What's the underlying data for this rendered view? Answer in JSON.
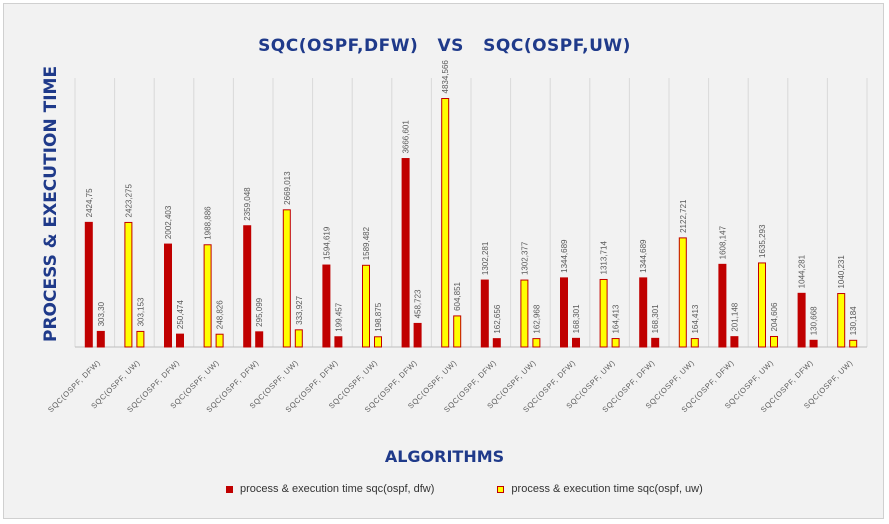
{
  "chart_data": {
    "type": "bar",
    "title": "SQC(OSPF,DFW)   VS   SQC(OSPF,UW)",
    "xlabel": "ALGORITHMS",
    "ylabel": "PROCESS & EXECUTION TIME",
    "categories": [
      "SQC(OSPF, DFW)",
      "SQC(OSPF, UW)",
      "SQC(OSPF, DFW)",
      "SQC(OSPF, UW)",
      "SQC(OSPF, DFW)",
      "SQC(OSPF, UW)",
      "SQC(OSPF, DFW)",
      "SQC(OSPF, UW)",
      "SQC(OSPF, DFW)",
      "SQC(OSPF, UW)",
      "SQC(OSPF, DFW)",
      "SQC(OSPF, UW)",
      "SQC(OSPF, DFW)",
      "SQC(OSPF, UW)",
      "SQC(OSPF, DFW)",
      "SQC(OSPF, UW)",
      "SQC(OSPF, DFW)",
      "SQC(OSPF, UW)",
      "SQC(OSPF, DFW)",
      "SQC(OSPF, UW)"
    ],
    "series": [
      {
        "name": "process & execution time sqc(ospf, dfw)",
        "color": "#c00000",
        "stroke": "#c00000"
      },
      {
        "name": "process & execution time sqc(ospf, uw)",
        "color": "#ffff00",
        "stroke": "#c00000"
      }
    ],
    "bars": [
      {
        "series": 0,
        "value": 2424.75,
        "label": "2424,75"
      },
      {
        "series": 0,
        "value": 303.3,
        "label": "303,30"
      },
      {
        "series": 1,
        "value": 2423.275,
        "label": "2423,275"
      },
      {
        "series": 1,
        "value": 303.153,
        "label": "303,153"
      },
      {
        "series": 0,
        "value": 2002.403,
        "label": "2002,403"
      },
      {
        "series": 0,
        "value": 250.474,
        "label": "250,474"
      },
      {
        "series": 1,
        "value": 1988.886,
        "label": "1988,886"
      },
      {
        "series": 1,
        "value": 248.826,
        "label": "248,826"
      },
      {
        "series": 0,
        "value": 2359.048,
        "label": "2359,048"
      },
      {
        "series": 0,
        "value": 295.099,
        "label": "295,099"
      },
      {
        "series": 1,
        "value": 2669.013,
        "label": "2669,013"
      },
      {
        "series": 1,
        "value": 333.927,
        "label": "333,927"
      },
      {
        "series": 0,
        "value": 1594.619,
        "label": "1594,619"
      },
      {
        "series": 0,
        "value": 199.457,
        "label": "199,457"
      },
      {
        "series": 1,
        "value": 1589.482,
        "label": "1589,482"
      },
      {
        "series": 1,
        "value": 198.875,
        "label": "198,875"
      },
      {
        "series": 0,
        "value": 3666.601,
        "label": "3666,601"
      },
      {
        "series": 0,
        "value": 458.723,
        "label": "458,723"
      },
      {
        "series": 1,
        "value": 4834.566,
        "label": "4834,566"
      },
      {
        "series": 1,
        "value": 604.851,
        "label": "604,851"
      },
      {
        "series": 0,
        "value": 1302.281,
        "label": "1302,281"
      },
      {
        "series": 0,
        "value": 162.656,
        "label": "162,656"
      },
      {
        "series": 1,
        "value": 1302.377,
        "label": "1302,377"
      },
      {
        "series": 1,
        "value": 162.968,
        "label": "162,968"
      },
      {
        "series": 0,
        "value": 1344.689,
        "label": "1344,689"
      },
      {
        "series": 0,
        "value": 168.301,
        "label": "168,301"
      },
      {
        "series": 1,
        "value": 1313.714,
        "label": "1313,714"
      },
      {
        "series": 1,
        "value": 164.413,
        "label": "164,413"
      },
      {
        "series": 0,
        "value": 1344.689,
        "label": "1344,689"
      },
      {
        "series": 0,
        "value": 168.301,
        "label": "168,301"
      },
      {
        "series": 1,
        "value": 2122.721,
        "label": "2122,721"
      },
      {
        "series": 1,
        "value": 164.413,
        "label": "164,413"
      },
      {
        "series": 0,
        "value": 1608.147,
        "label": "1608,147"
      },
      {
        "series": 0,
        "value": 201.148,
        "label": "201,148"
      },
      {
        "series": 1,
        "value": 1635.293,
        "label": "1635,293"
      },
      {
        "series": 1,
        "value": 204.606,
        "label": "204,606"
      },
      {
        "series": 0,
        "value": 1044.281,
        "label": "1044,281"
      },
      {
        "series": 0,
        "value": 130.668,
        "label": "130,668"
      },
      {
        "series": 1,
        "value": 1040.231,
        "label": "1040,231"
      },
      {
        "series": 1,
        "value": 130.184,
        "label": "130,184"
      }
    ],
    "ylim": [
      0,
      5000
    ],
    "grid": "vertical",
    "legend_position": "bottom",
    "colors": {
      "title": "#1f3a8a",
      "grid": "#d9d9d9",
      "axis": "#bfbfbf",
      "label": "#595959"
    }
  }
}
